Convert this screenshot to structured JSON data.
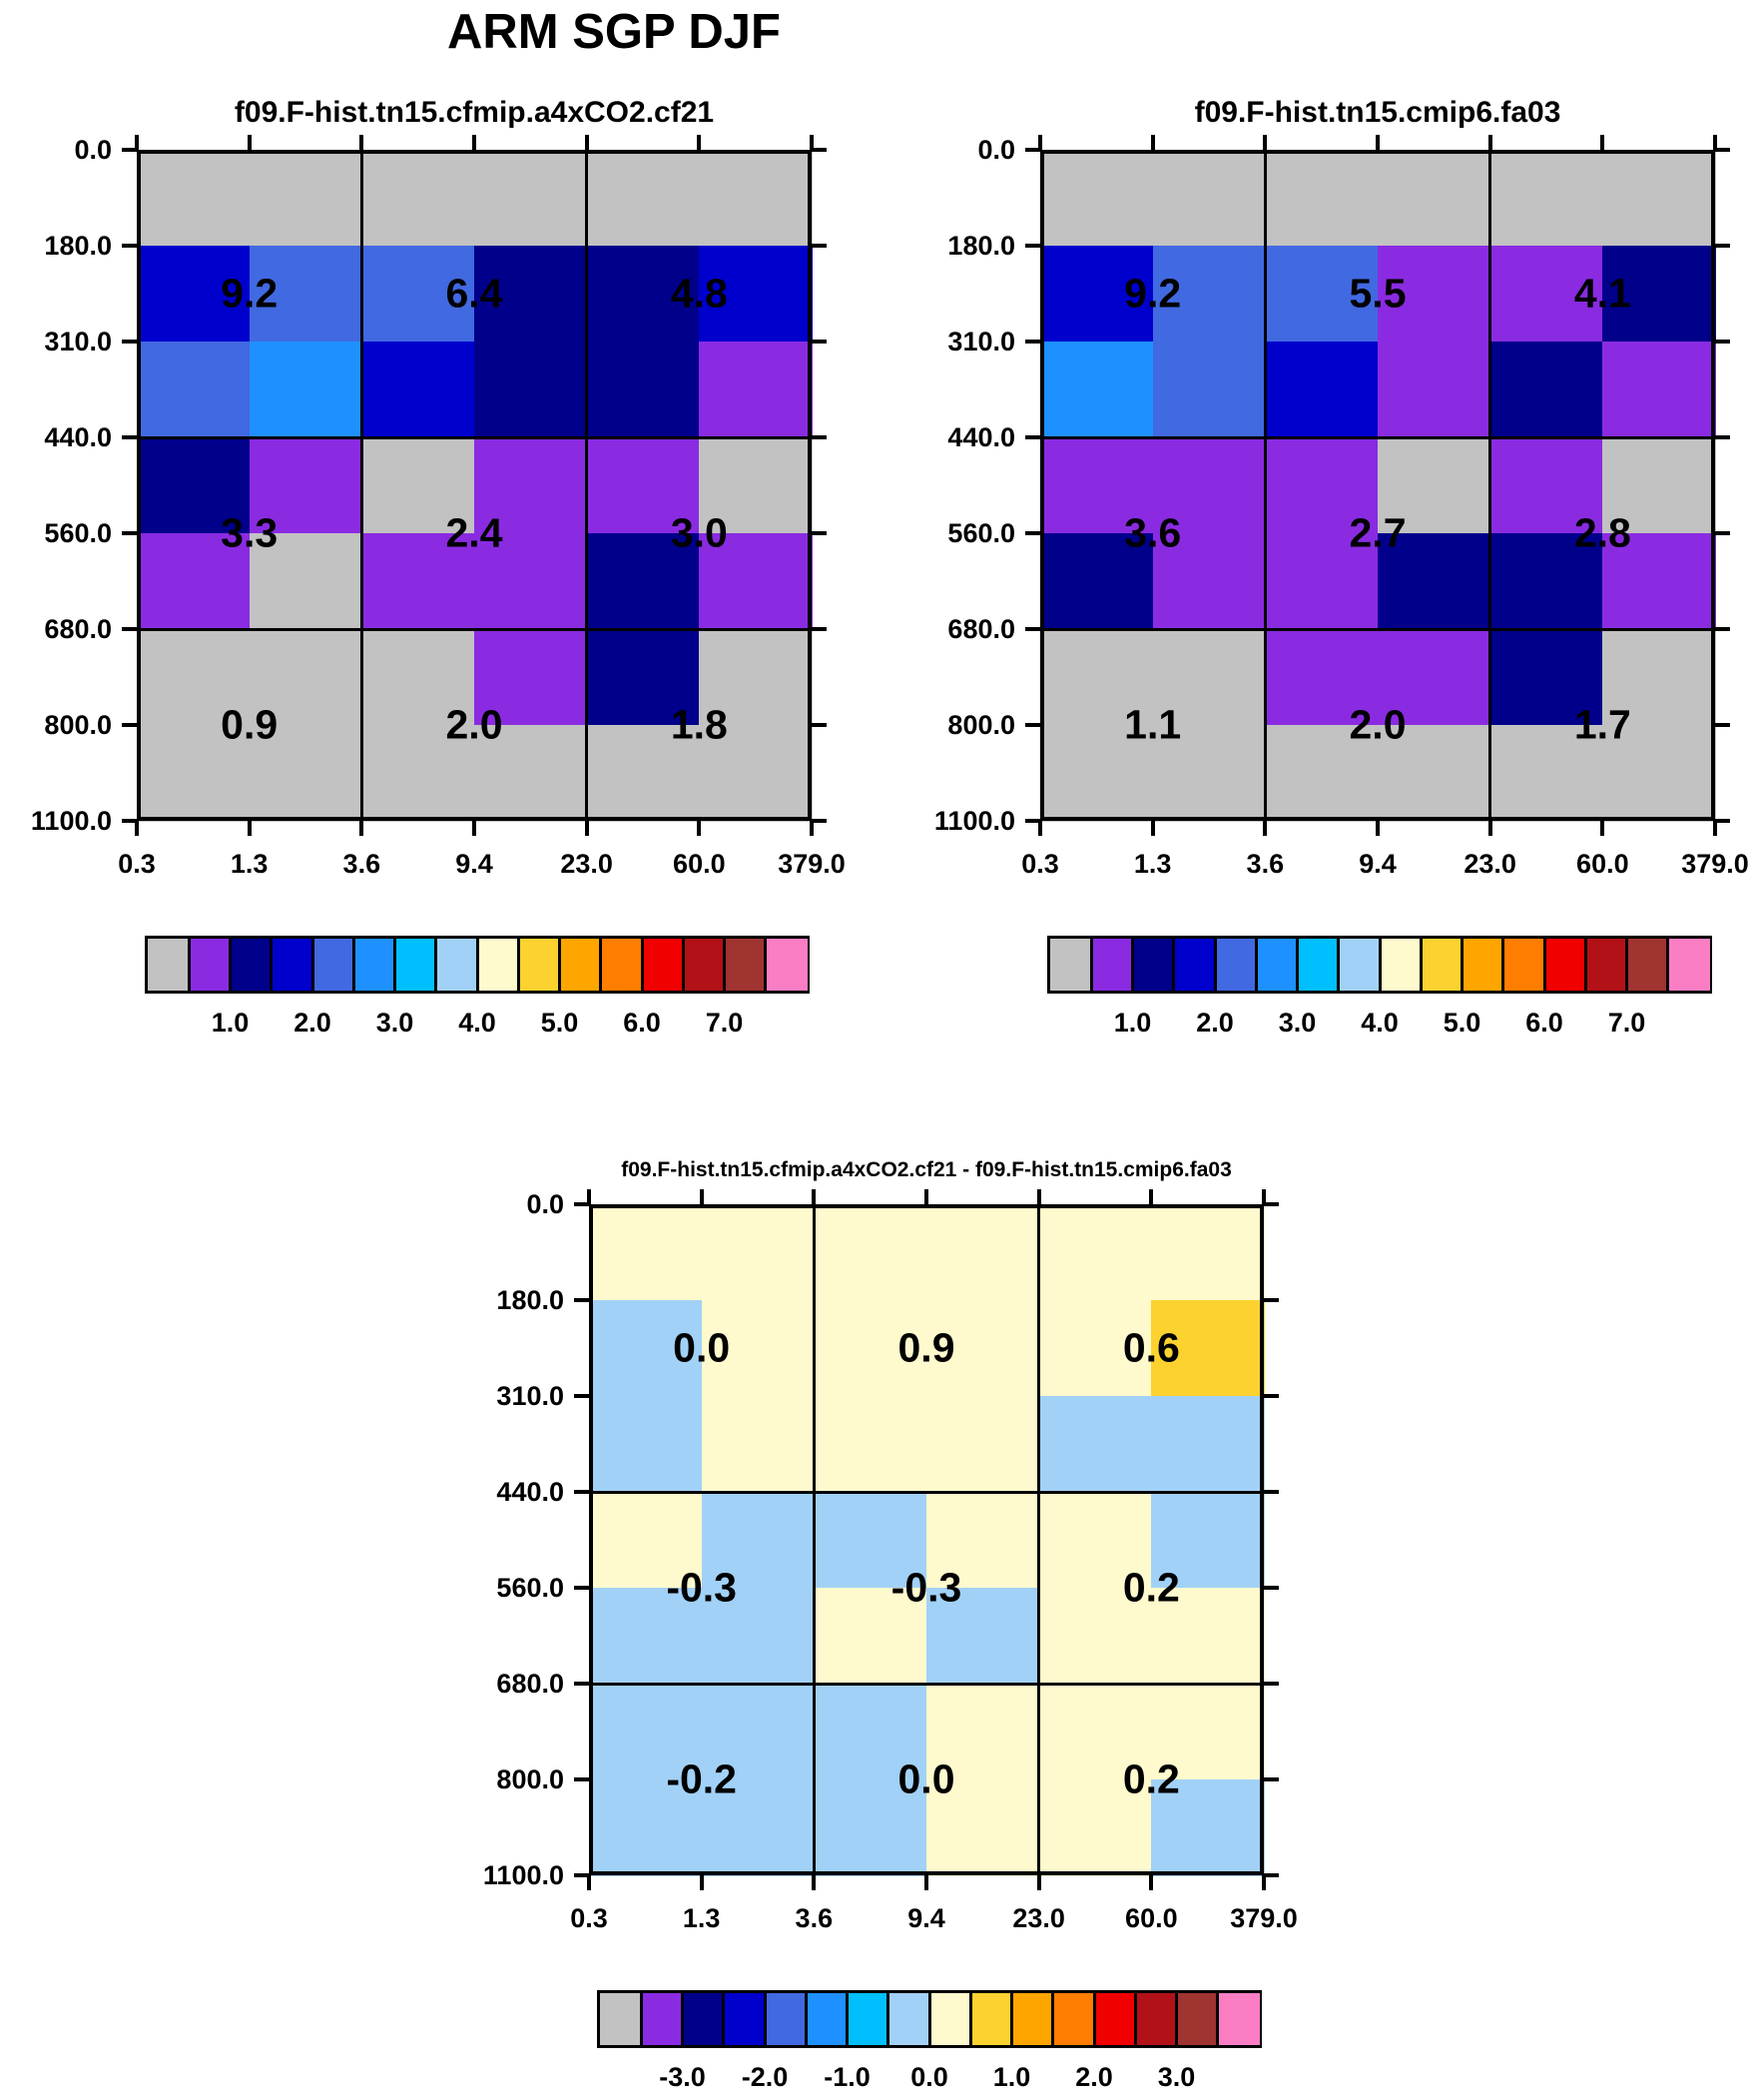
{
  "title": "ARM SGP DJF",
  "palette": {
    "gray": "#C2C2C2",
    "purple": "#8A2BE2",
    "darknavy": "#00008B",
    "blue": "#0000CD",
    "royal": "#4169E1",
    "dodger": "#1E90FF",
    "deepsky": "#00BFFF",
    "lightblue": "#A2D1F7",
    "paleyellow": "#FFFACD",
    "gold": "#FBD22F",
    "orange": "#FFA500",
    "darkorange": "#FF7D00",
    "red": "#F10000",
    "darkred": "#B11117",
    "brownred": "#A03431",
    "pink": "#FB7EC5"
  },
  "colorbar_colors": [
    "gray",
    "purple",
    "darknavy",
    "blue",
    "royal",
    "dodger",
    "deepsky",
    "lightblue",
    "paleyellow",
    "gold",
    "orange",
    "darkorange",
    "red",
    "darkred",
    "brownred",
    "pink"
  ],
  "axes": {
    "x_ticks": [
      "0.3",
      "1.3",
      "3.6",
      "9.4",
      "23.0",
      "60.0",
      "379.0"
    ],
    "y_ticks": [
      "0.0",
      "180.0",
      "310.0",
      "440.0",
      "560.0",
      "680.0",
      "800.0",
      "1100.0"
    ]
  },
  "chart_data": [
    {
      "type": "heatmap",
      "title": "f09.F-hist.tn15.cfmip.a4xCO2.cf21",
      "x_bin_edges": [
        0.3,
        1.3,
        3.6,
        9.4,
        23.0,
        60.0,
        379.0
      ],
      "y_bin_edges": [
        0.0,
        180.0,
        310.0,
        440.0,
        560.0,
        680.0,
        800.0,
        1100.0
      ],
      "cell_colors": [
        [
          "gray",
          "gray",
          "gray",
          "gray",
          "gray",
          "gray"
        ],
        [
          "blue",
          "royal",
          "royal",
          "darknavy",
          "darknavy",
          "blue"
        ],
        [
          "royal",
          "dodger",
          "blue",
          "darknavy",
          "darknavy",
          "purple"
        ],
        [
          "darknavy",
          "purple",
          "gray",
          "purple",
          "purple",
          "gray"
        ],
        [
          "purple",
          "gray",
          "purple",
          "purple",
          "darknavy",
          "purple"
        ],
        [
          "gray",
          "gray",
          "gray",
          "purple",
          "darknavy",
          "gray"
        ],
        [
          "gray",
          "gray",
          "gray",
          "gray",
          "gray",
          "gray"
        ]
      ],
      "block_values": [
        [
          9.2,
          6.4,
          4.8
        ],
        [
          3.3,
          2.4,
          3.0
        ],
        [
          0.9,
          2.0,
          1.8
        ]
      ],
      "colorbar_tick_values": [
        1.0,
        2.0,
        3.0,
        4.0,
        5.0,
        6.0,
        7.0
      ]
    },
    {
      "type": "heatmap",
      "title": "f09.F-hist.tn15.cmip6.fa03",
      "x_bin_edges": [
        0.3,
        1.3,
        3.6,
        9.4,
        23.0,
        60.0,
        379.0
      ],
      "y_bin_edges": [
        0.0,
        180.0,
        310.0,
        440.0,
        560.0,
        680.0,
        800.0,
        1100.0
      ],
      "cell_colors": [
        [
          "gray",
          "gray",
          "gray",
          "gray",
          "gray",
          "gray"
        ],
        [
          "blue",
          "royal",
          "royal",
          "purple",
          "purple",
          "darknavy"
        ],
        [
          "dodger",
          "royal",
          "blue",
          "purple",
          "darknavy",
          "purple"
        ],
        [
          "purple",
          "purple",
          "purple",
          "gray",
          "purple",
          "gray"
        ],
        [
          "darknavy",
          "purple",
          "purple",
          "darknavy",
          "darknavy",
          "purple"
        ],
        [
          "gray",
          "gray",
          "purple",
          "purple",
          "darknavy",
          "gray"
        ],
        [
          "gray",
          "gray",
          "gray",
          "gray",
          "gray",
          "gray"
        ]
      ],
      "block_values": [
        [
          9.2,
          5.5,
          4.1
        ],
        [
          3.6,
          2.7,
          2.8
        ],
        [
          1.1,
          2.0,
          1.7
        ]
      ],
      "colorbar_tick_values": [
        1.0,
        2.0,
        3.0,
        4.0,
        5.0,
        6.0,
        7.0
      ]
    },
    {
      "type": "heatmap",
      "title": "f09.F-hist.tn15.cfmip.a4xCO2.cf21 - f09.F-hist.tn15.cmip6.fa03",
      "x_bin_edges": [
        0.3,
        1.3,
        3.6,
        9.4,
        23.0,
        60.0,
        379.0
      ],
      "y_bin_edges": [
        0.0,
        180.0,
        310.0,
        440.0,
        560.0,
        680.0,
        800.0,
        1100.0
      ],
      "cell_colors": [
        [
          "paleyellow",
          "paleyellow",
          "paleyellow",
          "paleyellow",
          "paleyellow",
          "paleyellow"
        ],
        [
          "lightblue",
          "paleyellow",
          "paleyellow",
          "paleyellow",
          "paleyellow",
          "gold"
        ],
        [
          "lightblue",
          "paleyellow",
          "paleyellow",
          "paleyellow",
          "lightblue",
          "lightblue"
        ],
        [
          "paleyellow",
          "lightblue",
          "lightblue",
          "paleyellow",
          "paleyellow",
          "lightblue"
        ],
        [
          "lightblue",
          "lightblue",
          "paleyellow",
          "lightblue",
          "paleyellow",
          "paleyellow"
        ],
        [
          "lightblue",
          "lightblue",
          "lightblue",
          "paleyellow",
          "paleyellow",
          "paleyellow"
        ],
        [
          "lightblue",
          "lightblue",
          "lightblue",
          "paleyellow",
          "paleyellow",
          "lightblue"
        ]
      ],
      "block_values": [
        [
          0.0,
          0.9,
          0.6
        ],
        [
          -0.3,
          -0.3,
          0.2
        ],
        [
          -0.2,
          0.0,
          0.2
        ]
      ],
      "colorbar_tick_values": [
        -3.0,
        -2.0,
        -1.0,
        0.0,
        1.0,
        2.0,
        3.0
      ]
    }
  ]
}
